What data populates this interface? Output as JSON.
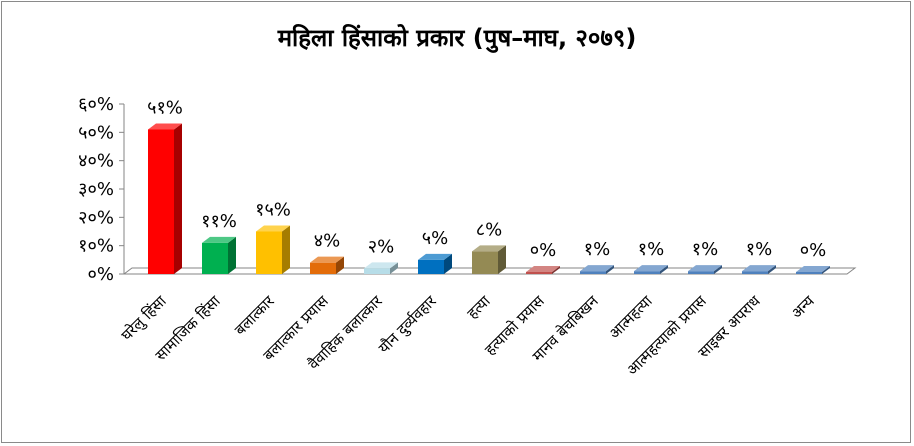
{
  "chart_data": {
    "type": "bar",
    "title": "महिला हिंसाको प्रकार (पुष–माघ, २०७९)",
    "categories": [
      "घरेलु हिंसा",
      "सामाजिक हिंसा",
      "बलात्कार",
      "बलात्कार प्रयास",
      "वैवाहिक बलात्कार",
      "यौन दुर्व्यवहार",
      "हत्या",
      "हत्याको प्रयास",
      "मानव बेचबिखन",
      "आत्महत्या",
      "आत्महत्याको प्रयास",
      "साइबर अपराध",
      "अन्य"
    ],
    "values": [
      51,
      11,
      15,
      4,
      2,
      5,
      8,
      0,
      1,
      1,
      1,
      1,
      0
    ],
    "data_labels": [
      "५१%",
      "११%",
      "१५%",
      "४%",
      "२%",
      "५%",
      "८%",
      "०%",
      "१%",
      "१%",
      "१%",
      "१%",
      "०%"
    ],
    "y_ticks": [
      "०%",
      "१०%",
      "२०%",
      "३०%",
      "४०%",
      "५०%",
      "६०%"
    ],
    "ylim": [
      0,
      60
    ],
    "grid": false,
    "legend": "none",
    "colors": [
      "#ff0000",
      "#00b050",
      "#ffc000",
      "#e36c09",
      "#b7dde8",
      "#0070c0",
      "#948a54",
      "#c0504d",
      "#4f81bd",
      "#4f81bd",
      "#4f81bd",
      "#4f81bd",
      "#4f81bd"
    ]
  }
}
